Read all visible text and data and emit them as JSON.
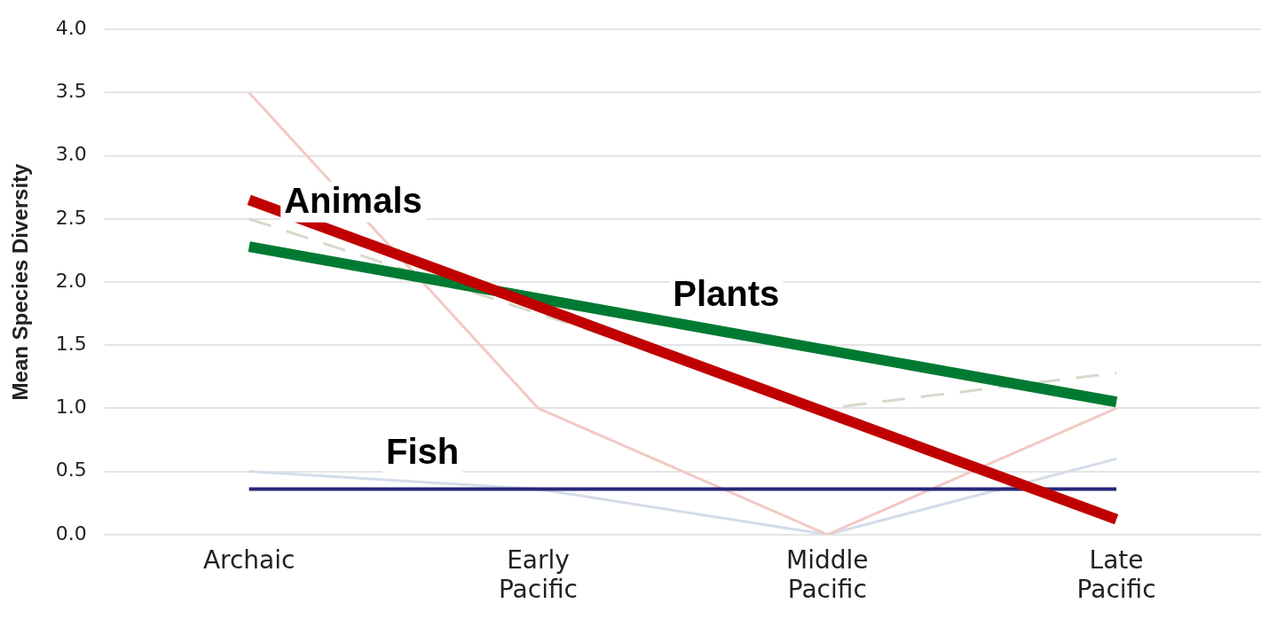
{
  "chart_data": {
    "type": "line",
    "ylabel": "Mean Species Diversity",
    "categories": [
      "Archaic",
      "Early Pacific",
      "Middle Pacific",
      "Late Pacific"
    ],
    "ylim": [
      0,
      4
    ],
    "yticks": [
      {
        "value": 0,
        "label": "0.0"
      },
      {
        "value": 0.5,
        "label": "0.5"
      },
      {
        "value": 1,
        "label": "1.0"
      },
      {
        "value": 1.5,
        "label": "1.5"
      },
      {
        "value": 2,
        "label": "2.0"
      },
      {
        "value": 2.5,
        "label": "2.5"
      },
      {
        "value": 3,
        "label": "3.0"
      },
      {
        "value": 3.5,
        "label": "3.5"
      },
      {
        "value": 4,
        "label": "4.0"
      }
    ],
    "grid": "y",
    "legend": false,
    "marker": "none",
    "series": [
      {
        "color": "#f2c9c4",
        "values": [
          3.5,
          1.0,
          0.0,
          1.0
        ]
      },
      {
        "color": "#d6dacb",
        "line_style": "dashed",
        "values": [
          2.5,
          1.75,
          1.0,
          1.28
        ]
      },
      {
        "color": "#d4dcea",
        "values": [
          0.5,
          0.36,
          0.0,
          0.6
        ]
      },
      {
        "name": "Animals",
        "color": "#c00000",
        "values": [
          2.65,
          null,
          null,
          0.12
        ]
      },
      {
        "name": "Plants",
        "color": "#007a33",
        "values": [
          2.28,
          null,
          null,
          1.05
        ]
      },
      {
        "name": "Fish",
        "color": "#26267a",
        "values": [
          0.36,
          null,
          null,
          0.36
        ]
      }
    ]
  }
}
